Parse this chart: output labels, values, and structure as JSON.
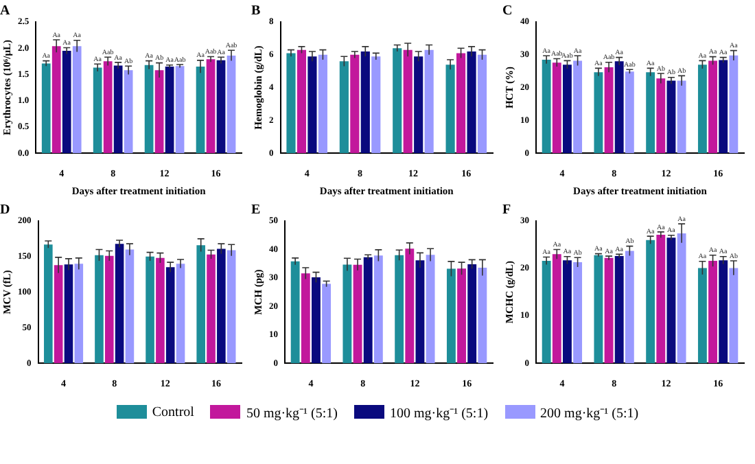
{
  "chart_data": [
    {
      "type": "bar",
      "title": "A",
      "xlabel": "Days after treatment initiation",
      "ylabel": "Erythrocytes (10⁶/μL)",
      "categories": [
        "4",
        "8",
        "12",
        "16"
      ],
      "ylim": [
        0,
        2.5
      ],
      "yticks": [
        {
          "value": 0,
          "label": "0.0"
        },
        0.5,
        {
          "value": 1,
          "label": "1.0"
        },
        1.5,
        {
          "value": 2,
          "label": "2.0"
        },
        2.5
      ],
      "legend": "bottom",
      "series": [
        {
          "name": "Control",
          "color": "#1e8e9a",
          "values": [
            1.71,
            1.63,
            1.68,
            1.65
          ],
          "errors": [
            0.05,
            0.07,
            0.08,
            0.12
          ],
          "value_labels": [
            "Aa",
            "Aa",
            "Aa",
            "Aa"
          ]
        },
        {
          "name": "50 mg·kg⁻¹  (5:1)",
          "color": "#c2189c",
          "values": [
            2.04,
            1.75,
            1.58,
            1.79
          ],
          "errors": [
            0.12,
            0.08,
            0.14,
            0.05
          ],
          "value_labels": [
            "Aa",
            "Aab",
            "Ab",
            "Aab"
          ]
        },
        {
          "name": "100 mg·kg⁻¹  (5:1)",
          "color": "#0a0a7e",
          "values": [
            1.95,
            1.67,
            1.65,
            1.77
          ],
          "errors": [
            0.06,
            0.06,
            0.03,
            0.06
          ],
          "value_labels": [
            "Aa",
            "Aa",
            "Aa",
            "Aa"
          ]
        },
        {
          "name": "200 mg·kg⁻¹  (5:1)",
          "color": "#9999ff",
          "values": [
            2.04,
            1.58,
            1.66,
            1.86
          ],
          "errors": [
            0.11,
            0.08,
            0.03,
            0.1
          ],
          "value_labels": [
            "Aa",
            "Ab",
            "Aab",
            "Aab"
          ]
        }
      ]
    },
    {
      "type": "bar",
      "title": "B",
      "xlabel": "Days after treatment initiation",
      "ylabel": "Hemoglobin (g/dL)",
      "categories": [
        "4",
        "8",
        "12",
        "16"
      ],
      "ylim": [
        0,
        8
      ],
      "yticks": [
        0,
        2,
        4,
        6,
        8
      ],
      "series": [
        {
          "color": "#1e8e9a",
          "values": [
            6.1,
            5.6,
            6.4,
            5.4
          ],
          "errors": [
            0.2,
            0.3,
            0.2,
            0.3
          ]
        },
        {
          "color": "#c2189c",
          "values": [
            6.3,
            6.0,
            6.3,
            6.1
          ],
          "errors": [
            0.2,
            0.2,
            0.4,
            0.3
          ]
        },
        {
          "color": "#0a0a7e",
          "values": [
            5.9,
            6.2,
            5.9,
            6.2
          ],
          "errors": [
            0.3,
            0.3,
            0.3,
            0.3
          ]
        },
        {
          "color": "#9999ff",
          "values": [
            6.0,
            5.9,
            6.3,
            6.0
          ],
          "errors": [
            0.3,
            0.2,
            0.3,
            0.3
          ]
        }
      ]
    },
    {
      "type": "bar",
      "title": "C",
      "xlabel": "Days after treatment initiation",
      "ylabel": "HCT (%)",
      "categories": [
        "4",
        "8",
        "12",
        "16"
      ],
      "ylim": [
        0,
        40
      ],
      "yticks": [
        0,
        10,
        20,
        30,
        40
      ],
      "series": [
        {
          "color": "#1e8e9a",
          "values": [
            28.5,
            24.7,
            24.7,
            27
          ],
          "errors": [
            1.2,
            1.2,
            1.2,
            1.2
          ],
          "value_labels": [
            "Aa",
            "Aa",
            "Aa",
            "Aa"
          ]
        },
        {
          "color": "#c2189c",
          "values": [
            27.6,
            26.2,
            22.8,
            28.2
          ],
          "errors": [
            1.2,
            1.5,
            1.5,
            1.2
          ],
          "value_labels": [
            "Aab",
            "Aab",
            "Ab",
            "Aa"
          ]
        },
        {
          "color": "#0a0a7e",
          "values": [
            27,
            28,
            22.1,
            28.4
          ],
          "errors": [
            1.2,
            1.2,
            1,
            0.8
          ],
          "value_labels": [
            "Aab",
            "Aa",
            "Ab",
            "Aa"
          ]
        },
        {
          "color": "#9999ff",
          "values": [
            28.2,
            24.9,
            22.1,
            29.8
          ],
          "errors": [
            1.5,
            0.6,
            1.5,
            1.5
          ],
          "value_labels": [
            "Aa",
            "Aab",
            "Ab",
            "Aa"
          ]
        }
      ]
    },
    {
      "type": "bar",
      "title": "D",
      "ylabel": "MCV (fL)",
      "categories": [
        "4",
        "8",
        "12",
        "16"
      ],
      "ylim": [
        0,
        200
      ],
      "yticks": [
        0,
        50,
        100,
        150,
        200
      ],
      "series": [
        {
          "color": "#1e8e9a",
          "values": [
            167,
            152,
            150,
            166
          ],
          "errors": [
            5,
            8,
            6,
            9
          ]
        },
        {
          "color": "#c2189c",
          "values": [
            138,
            151,
            148,
            153
          ],
          "errors": [
            11,
            7,
            7,
            6
          ]
        },
        {
          "color": "#0a0a7e",
          "values": [
            139,
            168,
            135,
            161
          ],
          "errors": [
            8,
            5,
            7,
            7
          ]
        },
        {
          "color": "#9999ff",
          "values": [
            140,
            160,
            140,
            159
          ],
          "errors": [
            8,
            8,
            6,
            8
          ]
        }
      ]
    },
    {
      "type": "bar",
      "title": "E",
      "ylabel": "MCH (pg)",
      "categories": [
        "4",
        "8",
        "12",
        "16"
      ],
      "ylim": [
        0,
        50
      ],
      "yticks": [
        0,
        10,
        20,
        30,
        40,
        50
      ],
      "series": [
        {
          "color": "#1e8e9a",
          "values": [
            35.8,
            34.7,
            38,
            33.2
          ],
          "errors": [
            1.2,
            2.2,
            1.8,
            2.6
          ]
        },
        {
          "color": "#c2189c",
          "values": [
            31.6,
            34.6,
            40.3,
            33.3
          ],
          "errors": [
            2,
            2,
            2,
            2.2
          ]
        },
        {
          "color": "#0a0a7e",
          "values": [
            30.2,
            37.3,
            36.2,
            34.8
          ],
          "errors": [
            1.8,
            0.8,
            2.6,
            1.6
          ]
        },
        {
          "color": "#9999ff",
          "values": [
            27.9,
            37.9,
            38.1,
            33.6
          ],
          "errors": [
            1,
            2,
            2.2,
            2.8
          ]
        }
      ]
    },
    {
      "type": "bar",
      "title": "F",
      "ylabel": "MCHC (g/dL)",
      "categories": [
        "4",
        "8",
        "12",
        "16"
      ],
      "ylim": [
        0,
        30
      ],
      "yticks": [
        0,
        10,
        20,
        30
      ],
      "series": [
        {
          "color": "#1e8e9a",
          "values": [
            21.6,
            22.8,
            26,
            20.1
          ],
          "errors": [
            0.8,
            0.3,
            0.8,
            1.4
          ],
          "value_labels": [
            "Aa",
            "Aa",
            "Aa",
            "Aa"
          ]
        },
        {
          "color": "#c2189c",
          "values": [
            23,
            22.2,
            27.1,
            21.6
          ],
          "errors": [
            1,
            0.4,
            0.6,
            1.2
          ],
          "value_labels": [
            "Aa",
            "Aa",
            "Aa",
            "Aa"
          ]
        },
        {
          "color": "#0a0a7e",
          "values": [
            21.7,
            22.6,
            26.5,
            21.7
          ],
          "errors": [
            0.8,
            0.4,
            0.5,
            0.8
          ],
          "value_labels": [
            "Aa",
            "Aa",
            "Aa",
            "Aa"
          ]
        },
        {
          "color": "#9999ff",
          "values": [
            21.3,
            23.7,
            27.4,
            20.1
          ],
          "errors": [
            1,
            1,
            2,
            1.5
          ],
          "value_labels": [
            "Ab",
            "Ab",
            "Aa",
            "Ab"
          ]
        }
      ]
    }
  ]
}
